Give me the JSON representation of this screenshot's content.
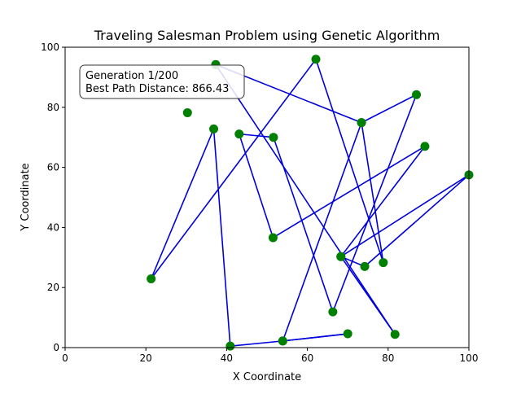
{
  "chart_data": {
    "type": "line",
    "title": "Traveling Salesman Problem using Genetic Algorithm",
    "xlabel": "X Coordinate",
    "ylabel": "Y Coordinate",
    "xlim": [
      0,
      100
    ],
    "ylim": [
      0,
      100
    ],
    "xticks": [
      0,
      20,
      40,
      60,
      80,
      100
    ],
    "yticks": [
      0,
      20,
      40,
      60,
      80,
      100
    ],
    "grid": false,
    "annotation": {
      "lines": [
        "Generation 1/200",
        "Best Path Distance: 866.43"
      ],
      "placement": "top-left"
    },
    "series": [
      {
        "style": "route",
        "marker": "circle",
        "line_color": "#0000dd",
        "marker_color": "#008000",
        "points": [
          [
            37.3,
            94.2
          ],
          [
            73.4,
            74.9
          ],
          [
            78.8,
            28.3
          ],
          [
            62.1,
            96.0
          ],
          [
            21.3,
            22.9
          ],
          [
            36.8,
            72.8
          ],
          [
            40.9,
            0.5
          ],
          [
            53.9,
            2.2
          ],
          [
            70.0,
            4.6
          ],
          [
            53.9,
            2.2
          ],
          [
            73.4,
            74.9
          ],
          [
            87.0,
            84.2
          ],
          [
            66.3,
            11.9
          ],
          [
            51.6,
            70.0
          ],
          [
            43.1,
            71.1
          ],
          [
            51.5,
            36.6
          ],
          [
            89.1,
            67.0
          ],
          [
            68.3,
            30.3
          ],
          [
            100.0,
            57.5
          ],
          [
            74.2,
            27.0
          ],
          [
            68.3,
            30.3
          ],
          [
            81.7,
            4.4
          ],
          [
            37.3,
            94.2
          ]
        ]
      },
      {
        "style": "markers",
        "marker": "circle",
        "marker_color": "#008000",
        "points": [
          [
            30.3,
            78.2
          ]
        ]
      }
    ]
  }
}
